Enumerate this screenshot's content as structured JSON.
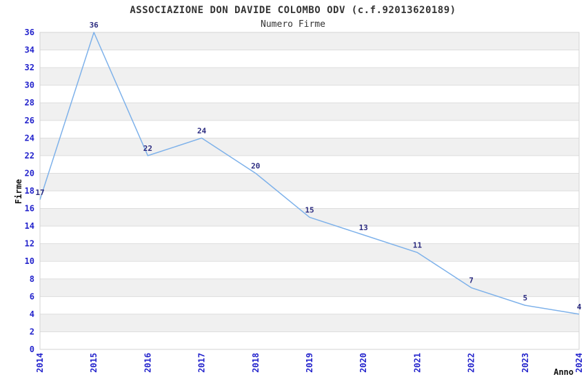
{
  "header": {
    "title": "ASSOCIAZIONE DON DAVIDE COLOMBO ODV (c.f.92013620189)",
    "subtitle": "Numero Firme"
  },
  "chart_data": {
    "type": "line",
    "title": "ASSOCIAZIONE DON DAVIDE COLOMBO ODV (c.f.92013620189)",
    "subtitle": "Numero Firme",
    "xlabel": "Anno",
    "ylabel": "Firme",
    "categories": [
      2014,
      2015,
      2016,
      2017,
      2018,
      2019,
      2020,
      2021,
      2022,
      2023,
      2024
    ],
    "values": [
      17,
      36,
      22,
      24,
      20,
      15,
      13,
      11,
      7,
      5,
      4
    ],
    "ylim": [
      0,
      36
    ],
    "ytick_step": 2,
    "grid": true,
    "stripes": true,
    "legend_position": "none",
    "point_labels_visible": true,
    "colors": {
      "line": "#7db1ea",
      "tick_label": "#2323cc",
      "point_label": "#2b2b80",
      "stripe": "#f0f0f0",
      "gridline": "#dddddd",
      "border": "#d3d3d3",
      "title_text": "#333333",
      "background": "#ffffff"
    }
  }
}
